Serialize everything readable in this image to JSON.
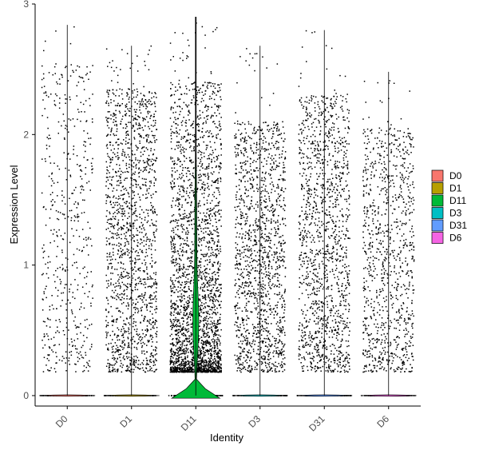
{
  "chart_data": {
    "type": "violin",
    "title": "",
    "xlabel": "Identity",
    "ylabel": "Expression Level",
    "categories": [
      "D0",
      "D1",
      "D11",
      "D3",
      "D31",
      "D6"
    ],
    "yticks": [
      0,
      1,
      2,
      3
    ],
    "ylim": [
      -0.08,
      3.0
    ],
    "grid": false,
    "legend_position": "right",
    "series": [
      {
        "name": "D0",
        "color": "#F8766D",
        "max": 2.84,
        "zero_fraction": 0.97,
        "point_density": 0.14,
        "spread_max": 2.55
      },
      {
        "name": "D1",
        "color": "#B79F00",
        "max": 2.68,
        "zero_fraction": 0.92,
        "point_density": 0.55,
        "spread_max": 2.35
      },
      {
        "name": "D11",
        "color": "#00BA38",
        "max": 2.9,
        "zero_fraction": 0.85,
        "point_density": 1.0,
        "spread_max": 2.4
      },
      {
        "name": "D3",
        "color": "#00BFC4",
        "max": 2.68,
        "zero_fraction": 0.93,
        "point_density": 0.5,
        "spread_max": 2.1
      },
      {
        "name": "D31",
        "color": "#619CFF",
        "max": 2.8,
        "zero_fraction": 0.93,
        "point_density": 0.48,
        "spread_max": 2.3
      },
      {
        "name": "D6",
        "color": "#F564E3",
        "max": 2.48,
        "zero_fraction": 0.95,
        "point_density": 0.32,
        "spread_max": 2.05
      }
    ]
  }
}
